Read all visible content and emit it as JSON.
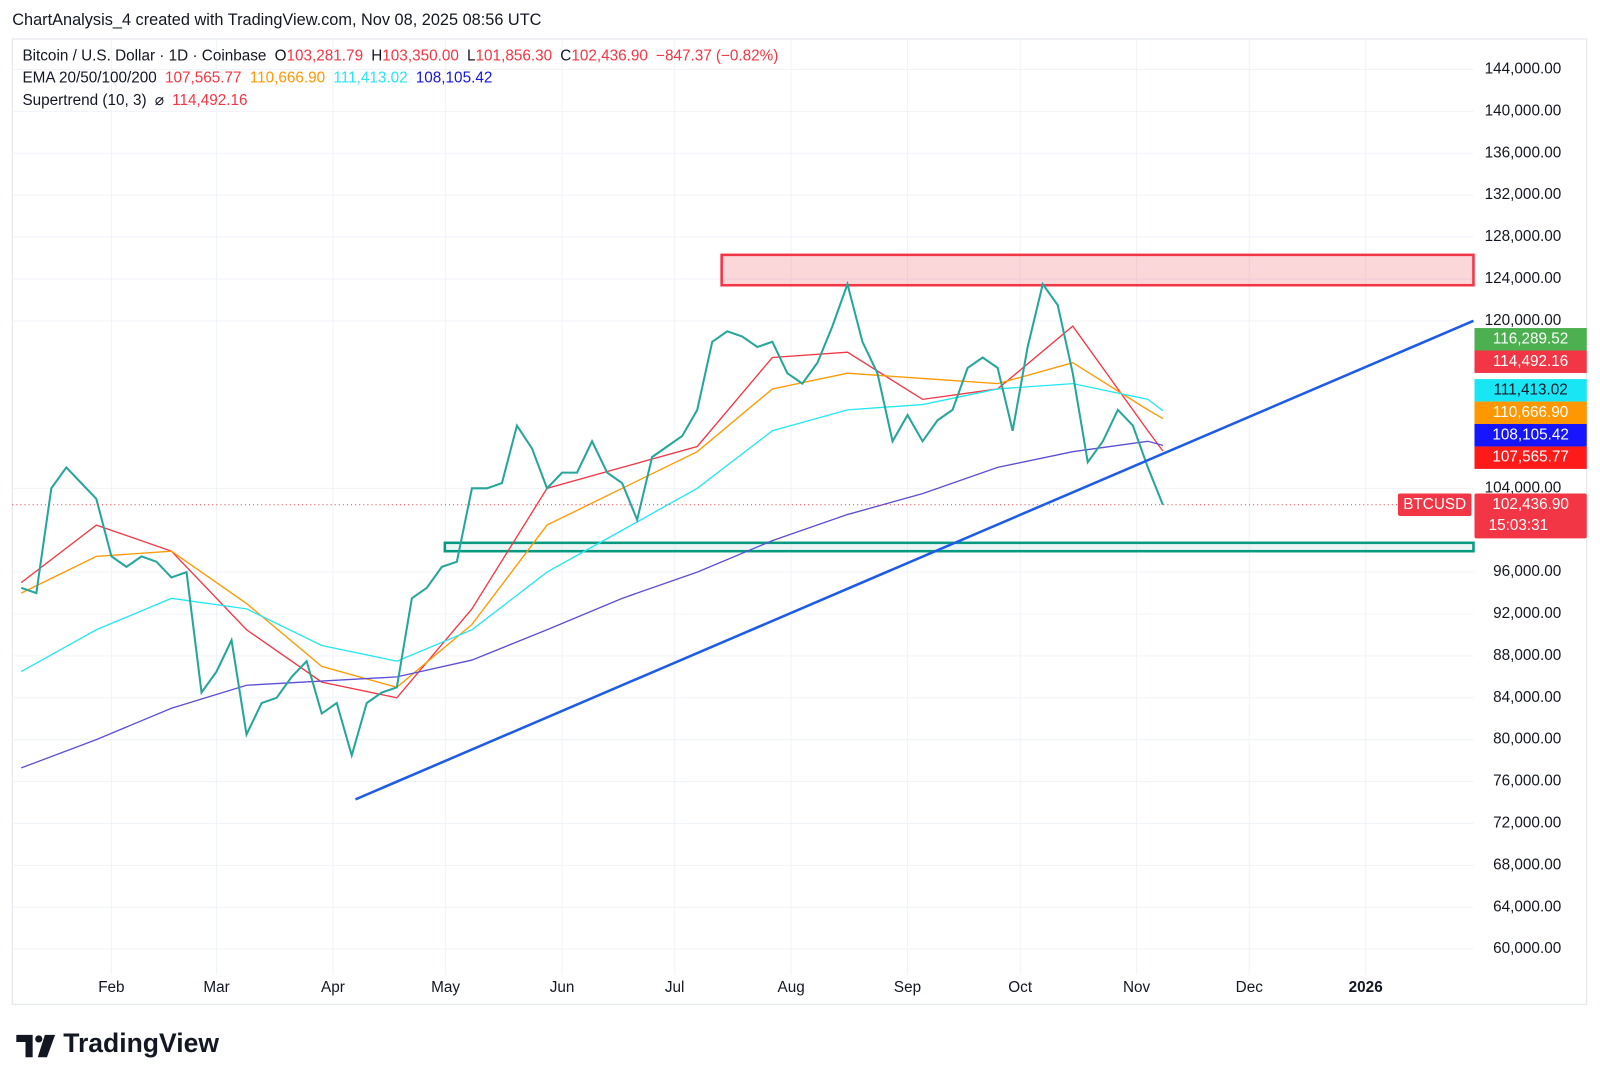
{
  "header": {
    "text": "ChartAnalysis_4 created with TradingView.com, Nov 08, 2025 08:56 UTC"
  },
  "chart_data": {
    "type": "line",
    "symbol": "Bitcoin / U.S. Dollar · 1D · Coinbase",
    "ohlc": [
      {
        "key": "O",
        "value": 103281.79,
        "label": "103,281.79"
      },
      {
        "key": "H",
        "value": 103350.0,
        "label": "103,350.00"
      },
      {
        "key": "L",
        "value": 101856.3,
        "label": "101,856.30"
      },
      {
        "key": "C",
        "value": 102436.9,
        "label": "102,436.90"
      }
    ],
    "change": {
      "value": -847.37,
      "label": "−847.37",
      "percent": -0.82,
      "percent_label": "(−0.82%)"
    },
    "indicators": [
      {
        "name": "EMA 20/50/100/200",
        "values": [
          107565.77,
          110666.9,
          111413.02,
          108105.42
        ],
        "value_labels": [
          "107,565.77",
          "110,666.90",
          "111,413.02",
          "108,105.42"
        ],
        "colors": [
          "#f23645",
          "#ff9800",
          "#26e6f2",
          "#1515e0"
        ]
      },
      {
        "name": "Supertrend (10, 3)",
        "symbol": "⌀",
        "values": [
          114492.16
        ],
        "value_labels": [
          "114,492.16"
        ],
        "colors": [
          "#f23645"
        ]
      }
    ],
    "x": [
      7,
      11,
      15,
      19,
      23,
      27,
      31,
      35,
      39,
      43,
      47,
      51,
      55,
      59,
      63,
      67,
      71,
      75,
      79,
      83,
      87,
      91,
      95,
      99,
      103,
      107,
      111,
      115,
      119,
      123,
      127,
      131,
      135,
      139,
      143,
      147,
      151,
      155,
      159,
      163,
      167,
      171,
      175,
      179,
      183,
      187,
      191,
      195,
      199,
      203,
      207,
      211,
      215,
      219,
      223,
      227,
      231,
      235,
      239,
      243,
      247,
      251,
      255,
      259,
      263,
      267,
      271,
      275,
      279,
      283,
      287,
      291,
      295,
      299,
      303,
      307,
      311
    ],
    "series": [
      {
        "name": "BTCUSD",
        "color": "#26a69a",
        "values": [
          94500,
          94000,
          104000,
          106000,
          104500,
          103000,
          97500,
          96500,
          97500,
          97000,
          95500,
          96000,
          84500,
          86500,
          89500,
          80500,
          83500,
          84000,
          86000,
          87500,
          82500,
          83500,
          78500,
          83500,
          84500,
          85000,
          93500,
          94500,
          96500,
          97000,
          104000,
          104000,
          104500,
          110000,
          107800,
          104000,
          105500,
          105500,
          108500,
          105500,
          104500,
          101000,
          107000,
          108000,
          109000,
          111500,
          118000,
          119000,
          118500,
          117500,
          118000,
          115000,
          114000,
          116000,
          119500,
          123500,
          118000,
          115000,
          108500,
          111000,
          108500,
          110500,
          111500,
          115500,
          116500,
          115500,
          109500,
          117500,
          123500,
          121500,
          115000,
          106500,
          108500,
          111500,
          110000,
          106000,
          102436.9
        ]
      }
    ],
    "ema_x": [
      7,
      27,
      47,
      67,
      87,
      107,
      127,
      147,
      167,
      187,
      207,
      227,
      247,
      267,
      287,
      307,
      311
    ],
    "ema_series": [
      {
        "color": "#f23645",
        "values": [
          95000,
          100500,
          98000,
          90500,
          85500,
          84000,
          92500,
          104000,
          106000,
          108000,
          116500,
          117000,
          112500,
          113500,
          119500,
          109500,
          107565.77
        ]
      },
      {
        "color": "#ff9800",
        "values": [
          94000,
          97500,
          98000,
          93000,
          87000,
          85000,
          91000,
          100500,
          104000,
          107500,
          113500,
          115000,
          114500,
          114000,
          116000,
          111500,
          110666.9
        ]
      },
      {
        "color": "#26e6f2",
        "values": [
          86500,
          90500,
          93500,
          92500,
          89000,
          87500,
          90500,
          96000,
          100000,
          104000,
          109500,
          111500,
          112000,
          113500,
          114000,
          112500,
          111413.02
        ]
      },
      {
        "color": "#5b4fd6",
        "values": [
          77300,
          80000,
          83000,
          85200,
          85600,
          86000,
          87600,
          90500,
          93500,
          96000,
          99000,
          101500,
          103500,
          106000,
          107500,
          108500,
          108105.42
        ]
      }
    ],
    "price_tags": [
      {
        "value": 116289.52,
        "label": "116,289.52",
        "color": "#4caf50"
      },
      {
        "value": 114492.16,
        "label": "114,492.16",
        "color": "#f23645"
      },
      {
        "value": 111413.02,
        "label": "111,413.02",
        "color": "#18e6f5"
      },
      {
        "value": 110666.9,
        "label": "110,666.90",
        "color": "#ff9800"
      },
      {
        "value": 108105.42,
        "label": "108,105.42",
        "color": "#1515ff"
      },
      {
        "value": 107565.77,
        "label": "107,565.77",
        "color": "#ff1a1a"
      }
    ],
    "last_price": {
      "symbol": "BTCUSD",
      "value": 102436.9,
      "label": "102,436.90",
      "countdown": "15:03:31",
      "color": "#f23645"
    },
    "annotations": {
      "trendline": {
        "x": [
          96,
          393.7
        ],
        "y": [
          74300,
          120000
        ],
        "color": "#1e5be6"
      },
      "resistance": {
        "x": [
          193.5,
          393.7
        ],
        "y": [
          123400,
          126300
        ],
        "color": "#f23645"
      },
      "support": {
        "x": [
          119.8,
          393.7
        ],
        "y": [
          98000,
          98800
        ],
        "color": "#089981"
      }
    },
    "xlim": [
      4.6,
      393.7
    ],
    "ylim": [
      57560,
      146920
    ],
    "xticks": [
      {
        "value": 31,
        "label": "Feb"
      },
      {
        "value": 59,
        "label": "Mar"
      },
      {
        "value": 90,
        "label": "Apr"
      },
      {
        "value": 120,
        "label": "May"
      },
      {
        "value": 151,
        "label": "Jun"
      },
      {
        "value": 181,
        "label": "Jul"
      },
      {
        "value": 212,
        "label": "Aug"
      },
      {
        "value": 243,
        "label": "Sep"
      },
      {
        "value": 273,
        "label": "Oct"
      },
      {
        "value": 304,
        "label": "Nov"
      },
      {
        "value": 334,
        "label": "Dec"
      },
      {
        "value": 365,
        "label": "2026"
      }
    ],
    "yticks": [
      {
        "value": 60000,
        "label": "60,000.00"
      },
      {
        "value": 64000,
        "label": "64,000.00"
      },
      {
        "value": 68000,
        "label": "68,000.00"
      },
      {
        "value": 72000,
        "label": "72,000.00"
      },
      {
        "value": 76000,
        "label": "76,000.00"
      },
      {
        "value": 80000,
        "label": "80,000.00"
      },
      {
        "value": 84000,
        "label": "84,000.00"
      },
      {
        "value": 88000,
        "label": "88,000.00"
      },
      {
        "value": 92000,
        "label": "92,000.00"
      },
      {
        "value": 96000,
        "label": "96,000.00"
      },
      {
        "value": 104000,
        "label": "104,000.00"
      },
      {
        "value": 120000,
        "label": "120,000.00"
      },
      {
        "value": 124000,
        "label": "124,000.00"
      },
      {
        "value": 128000,
        "label": "128,000.00"
      },
      {
        "value": 132000,
        "label": "132,000.00"
      },
      {
        "value": 136000,
        "label": "136,000.00"
      },
      {
        "value": 140000,
        "label": "140,000.00"
      },
      {
        "value": 144000,
        "label": "144,000.00"
      }
    ],
    "grid": true
  },
  "footer": {
    "brand": "TradingView"
  }
}
